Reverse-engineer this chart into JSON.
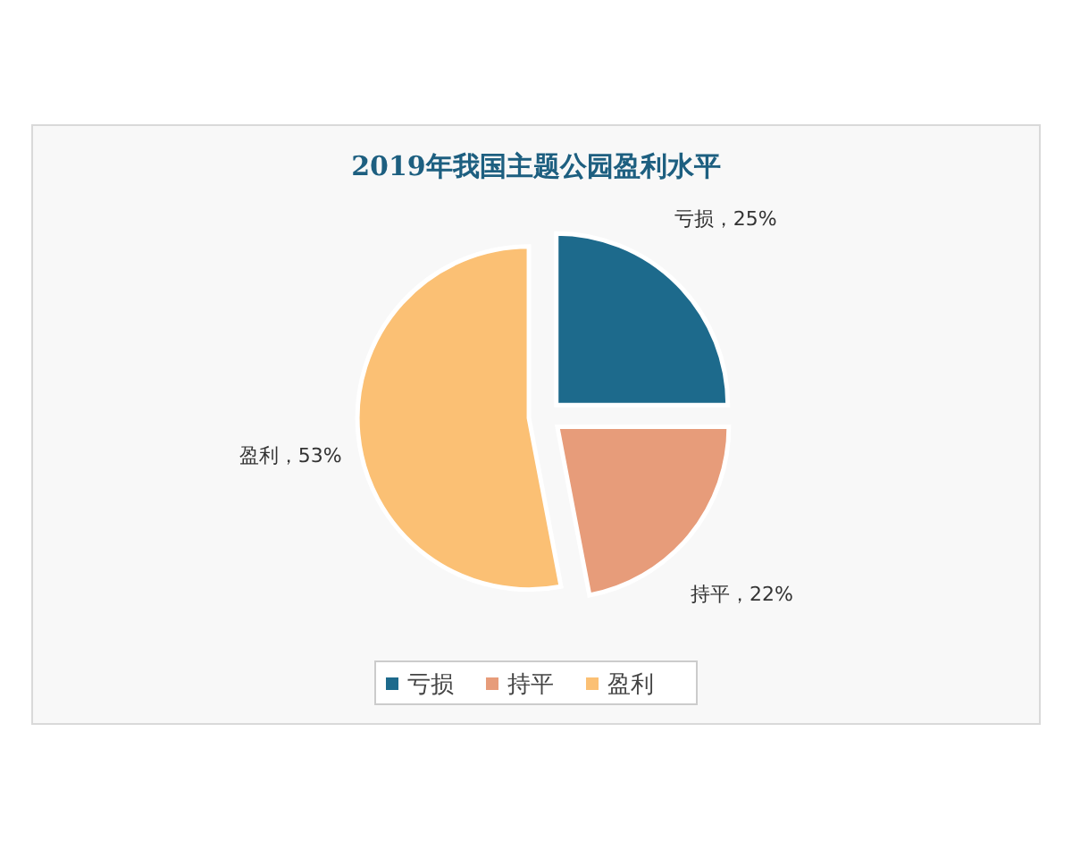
{
  "chart_data": {
    "type": "pie",
    "title": "2019年我国主题公园盈利水平",
    "categories": [
      "亏损",
      "持平",
      "盈利"
    ],
    "values": [
      25,
      22,
      53
    ],
    "colors": [
      "#1d6a8c",
      "#e79c7a",
      "#fbc074"
    ],
    "value_labels": [
      "亏损，25%",
      "持平，22%",
      "盈利，53%"
    ],
    "legend": "bottom"
  }
}
